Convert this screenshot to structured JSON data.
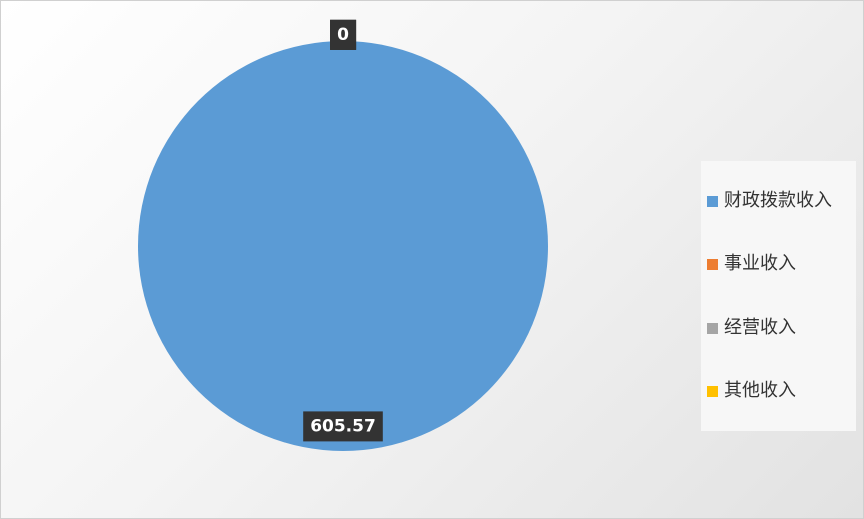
{
  "chart_data": {
    "type": "pie",
    "categories": [
      "财政拨款收入",
      "事业收入",
      "经营收入",
      "其他收入"
    ],
    "values": [
      605.57,
      0,
      0,
      0
    ],
    "colors": [
      "#5b9bd5",
      "#ed7d31",
      "#a5a5a5",
      "#ffc000"
    ],
    "legend": "right"
  }
}
